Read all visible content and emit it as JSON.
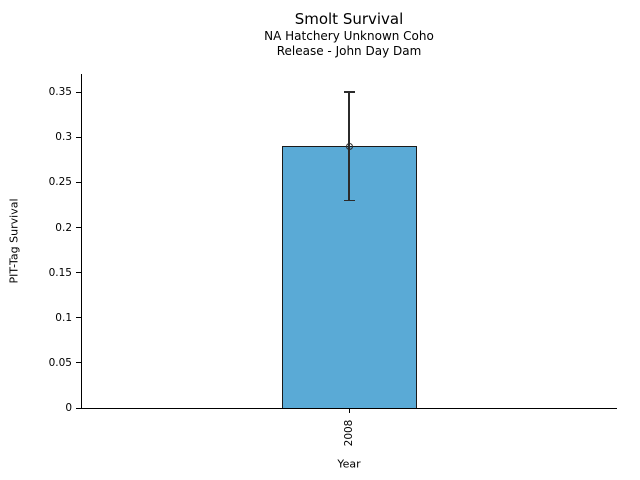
{
  "header": {
    "title": "Smolt Survival",
    "subtitle_line1": "NA Hatchery Unknown Coho",
    "subtitle_line2": "Release - John Day Dam"
  },
  "chart_data": {
    "type": "bar",
    "title": "Smolt Survival",
    "subtitle": [
      "NA Hatchery Unknown Coho",
      "Release - John Day Dam"
    ],
    "categories": [
      "2008"
    ],
    "values": [
      0.29
    ],
    "error_bars": [
      {
        "low": 0.23,
        "high": 0.35
      }
    ],
    "marker": "open-circle",
    "xlabel": "Year",
    "ylabel": "PIT-Tag Survival",
    "ylim": [
      0,
      0.369
    ],
    "yticks": [
      0,
      0.05,
      0.1,
      0.15,
      0.2,
      0.25,
      0.3,
      0.35
    ],
    "ytick_labels": [
      "0",
      "0.05",
      "0.1",
      "0.15",
      "0.2",
      "0.25",
      "0.3",
      "0.35"
    ],
    "grid": false,
    "legend": "none",
    "colors": {
      "bar_fill": "#5AAAD6",
      "bar_edge": "#1a1a1a",
      "error_bar": "#2b2b2b",
      "marker_edge": "#2b2b2b",
      "axis": "#000000",
      "background": "#ffffff"
    }
  }
}
